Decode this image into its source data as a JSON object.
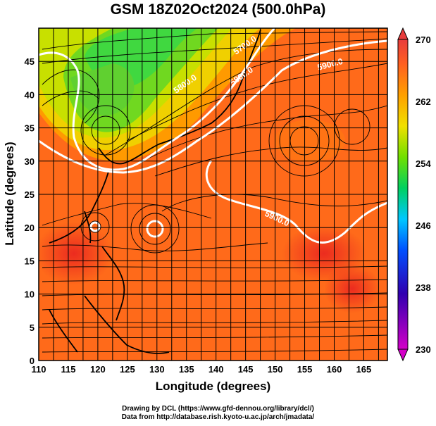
{
  "title": "GSM 18Z02Oct2024 (500.0hPa)",
  "axes": {
    "xlabel": "Longitude (degrees)",
    "ylabel": "Latitude  (degrees)",
    "xlim": [
      110,
      169
    ],
    "ylim": [
      0,
      50
    ],
    "xticks": [
      "110",
      "115",
      "120",
      "125",
      "130",
      "135",
      "140",
      "145",
      "150",
      "155",
      "160",
      "165"
    ],
    "yticks": [
      "0",
      "5",
      "10",
      "15",
      "20",
      "25",
      "30",
      "35",
      "40",
      "45"
    ]
  },
  "colorbar": {
    "ticks": [
      "230",
      "238",
      "246",
      "254",
      "262",
      "270"
    ],
    "range": [
      230,
      270
    ],
    "colors": [
      "#d400c8",
      "#3000b0",
      "#0040ff",
      "#00c8ff",
      "#00e060",
      "#70e000",
      "#f0e000",
      "#ffa000",
      "#ff6020",
      "#e83c3c"
    ]
  },
  "contours": [
    {
      "label": "5700.0"
    },
    {
      "label": "5800.0"
    },
    {
      "label": "5800.0"
    },
    {
      "label": "5900.0"
    },
    {
      "label": "5900.0"
    }
  ],
  "credits": {
    "line1": "Drawing by DCL (https://www.gfd-dennou.org/library/dcl/)",
    "line2": "Data from http://database.rish.kyoto-u.ac.jp/arch/jmadata/"
  },
  "chart_data": {
    "type": "heatmap",
    "title": "GSM 18Z02Oct2024 (500.0hPa)",
    "xlabel": "Longitude (degrees)",
    "ylabel": "Latitude  (degrees)",
    "xlim": [
      110,
      169
    ],
    "ylim": [
      0,
      50
    ],
    "grid": true,
    "colorbar_range": [
      230,
      270
    ],
    "contour_labels": [
      "5700.0",
      "5800.0",
      "5800.0",
      "5900.0",
      "5900.0"
    ]
  }
}
